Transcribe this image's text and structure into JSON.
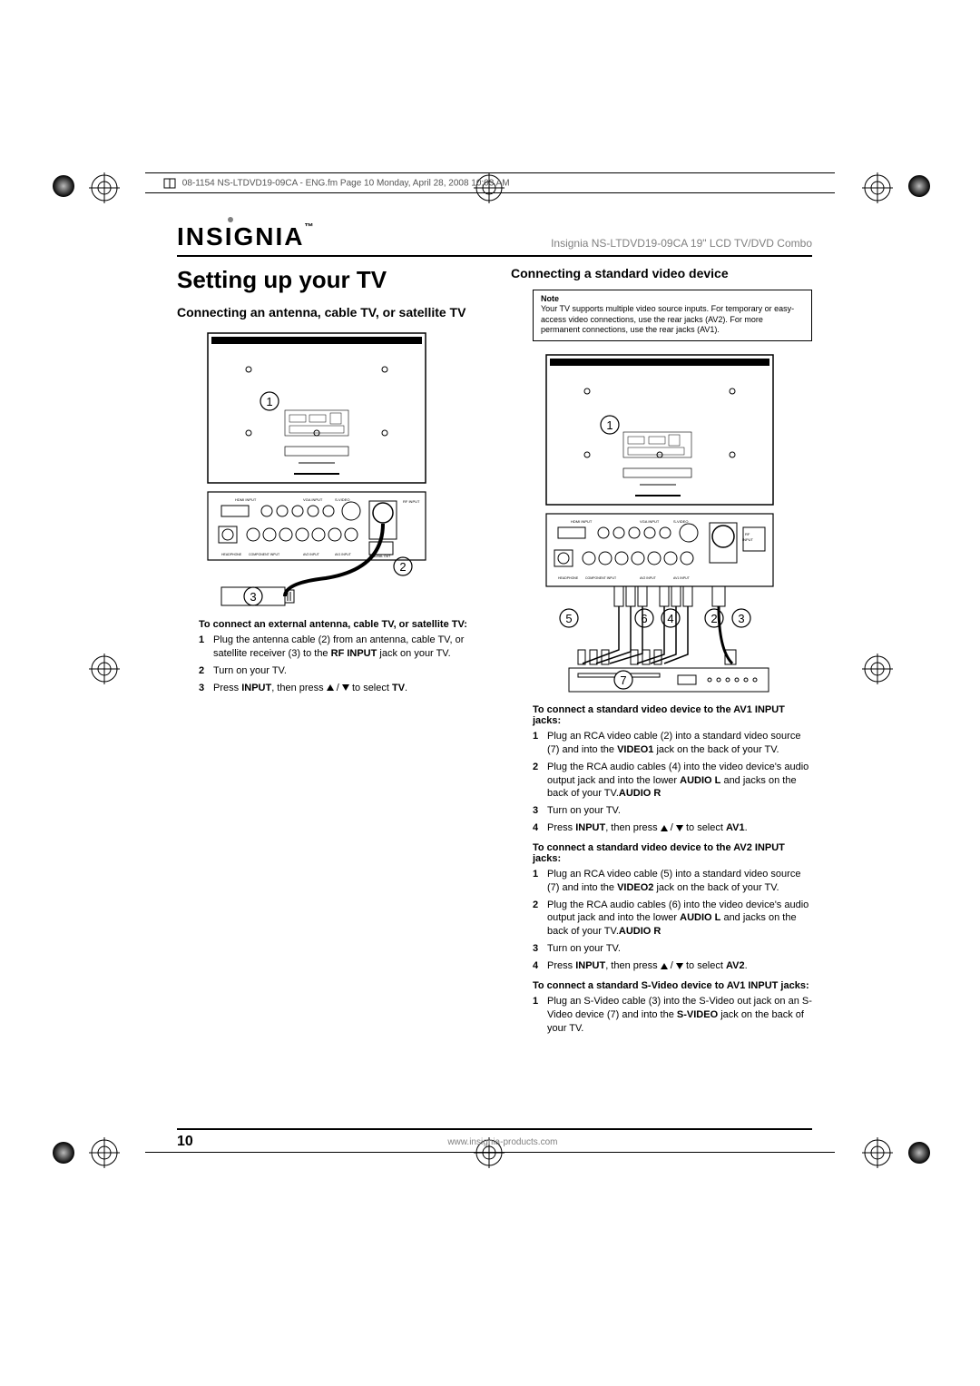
{
  "meta": {
    "header_line": "08-1154 NS-LTDVD19-09CA - ENG.fm  Page 10  Monday, April 28, 2008  10:03 AM"
  },
  "logo": {
    "text": "INSIGNIA",
    "tm": "™"
  },
  "header": {
    "product": "Insignia NS-LTDVD19-09CA 19\" LCD TV/DVD Combo"
  },
  "title": "Setting up your TV",
  "left": {
    "heading": "Connecting an antenna, cable TV, or satellite TV",
    "proc_heading": "To connect an external antenna, cable TV, or satellite TV:",
    "steps": [
      {
        "n": "1",
        "text_a": "Plug the antenna cable (2) from an antenna, cable TV, or satellite receiver (3) to the ",
        "bold1": "RF INPUT",
        "text_b": " jack on your TV."
      },
      {
        "n": "2",
        "text_a": "Turn on your TV."
      },
      {
        "n": "3",
        "text_a": "Press ",
        "bold1": "INPUT",
        "text_b": ", then press ",
        "arrows": true,
        "text_c": " to select ",
        "bold2": "TV",
        "text_d": "."
      }
    ]
  },
  "right": {
    "heading": "Connecting a standard video device",
    "note_label": "Note",
    "note_text": "Your TV supports multiple video source inputs. For temporary or easy-access video connections, use the rear jacks (AV2). For more permanent connections, use the rear jacks (AV1).",
    "proc1_heading": "To connect a standard video device to the AV1 INPUT jacks:",
    "proc1_steps": [
      {
        "n": "1",
        "text_a": "Plug an RCA video cable (2) into a standard video source (7) and into the ",
        "bold1": "VIDEO1",
        "text_b": " jack on the back of your TV."
      },
      {
        "n": "2",
        "text_a": "Plug the RCA audio cables (4) into the video device's audio output jack and into the lower ",
        "bold1": "AUDIO L",
        "text_b": " and ",
        "bold2": "AUDIO R",
        "text_c": " jacks on the back of your TV."
      },
      {
        "n": "3",
        "text_a": "Turn on your TV."
      },
      {
        "n": "4",
        "text_a": "Press ",
        "bold1": "INPUT",
        "text_b": ", then press ",
        "arrows": true,
        "text_c": " to select ",
        "bold2": "AV1",
        "text_d": "."
      }
    ],
    "proc2_heading": "To connect a standard video device to the AV2 INPUT jacks:",
    "proc2_steps": [
      {
        "n": "1",
        "text_a": "Plug an RCA video cable (5) into a standard video source (7) and into the ",
        "bold1": "VIDEO2",
        "text_b": " jack on the back of your TV."
      },
      {
        "n": "2",
        "text_a": "Plug the RCA audio cables (6) into the video device's audio output jack and into the lower ",
        "bold1": "AUDIO L",
        "text_b": " and ",
        "bold2": "AUDIO R",
        "text_c": " jacks on the back of your TV."
      },
      {
        "n": "3",
        "text_a": "Turn on your TV."
      },
      {
        "n": "4",
        "text_a": "Press ",
        "bold1": "INPUT",
        "text_b": ", then press ",
        "arrows": true,
        "text_c": " to select ",
        "bold2": "AV2",
        "text_d": "."
      }
    ],
    "proc3_heading": "To connect a standard S-Video device to AV1 INPUT jacks:",
    "proc3_steps": [
      {
        "n": "1",
        "text_a": "Plug an S-Video cable (3) into the S-Video out jack on an S-Video device (7) and into the ",
        "bold1": "S-VIDEO",
        "text_b": " jack on the back of your TV."
      }
    ]
  },
  "footer": {
    "page": "10",
    "url": "www.insignia-products.com"
  },
  "diagram_left": {
    "callouts": [
      "1",
      "2",
      "3"
    ],
    "labels": {
      "hdmi": "HDMI INPUT",
      "vga": "VGA INPUT",
      "svideo": "S-VIDEO",
      "rf": "RF INPUT",
      "comp": "COMPONENT INPUT",
      "av2": "AV2 INPUT",
      "av1": "AV1 INPUT",
      "headphone": "HEADPHONE",
      "coax": "COAXIAL OUT"
    }
  },
  "diagram_right": {
    "callouts": [
      "1",
      "2",
      "3",
      "4",
      "5",
      "6",
      "7"
    ],
    "labels": {
      "hdmi": "HDMI INPUT",
      "vga": "VGA INPUT",
      "svideo": "S-VIDEO",
      "rf": "RF INPUT",
      "comp": "COMPONENT INPUT",
      "av2": "AV2 INPUT",
      "av1": "AV1 INPUT",
      "headphone": "HEADPHONE",
      "coax": "COAXIAL OUT"
    }
  },
  "colors": {
    "text": "#000000",
    "muted": "#808080",
    "rule": "#000000",
    "background": "#ffffff"
  }
}
